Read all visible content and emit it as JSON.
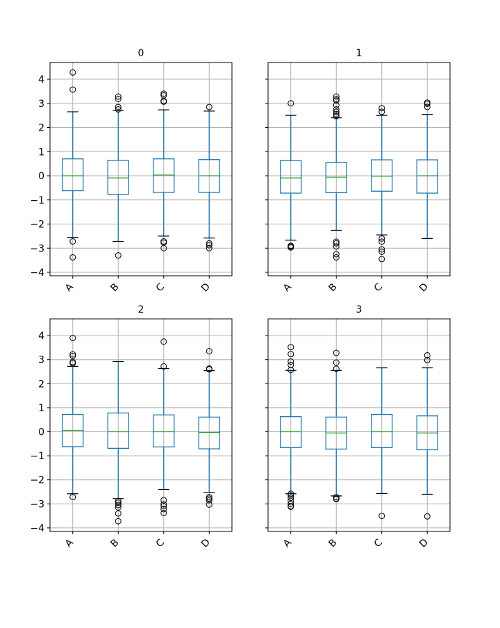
{
  "chart_data": [
    {
      "type": "box",
      "title": "0",
      "categories": [
        "A",
        "B",
        "C",
        "D"
      ],
      "ylim": [
        -4.15,
        4.7
      ],
      "yticks": [
        -4,
        -3,
        -2,
        -1,
        0,
        1,
        2,
        3,
        4
      ],
      "show_ytick_labels": true,
      "grid": true,
      "boxes": [
        {
          "label": "A",
          "whislo": -2.55,
          "q1": -0.62,
          "med": 0.0,
          "q3": 0.7,
          "whishi": 2.65,
          "fliers": [
            4.28,
            3.57,
            -2.72,
            -3.38
          ]
        },
        {
          "label": "B",
          "whislo": -2.72,
          "q1": -0.77,
          "med": -0.09,
          "q3": 0.64,
          "whishi": 2.7,
          "fliers": [
            3.28,
            3.18,
            2.85,
            2.75,
            -3.3
          ]
        },
        {
          "label": "C",
          "whislo": -2.5,
          "q1": -0.69,
          "med": 0.03,
          "q3": 0.7,
          "whishi": 2.73,
          "fliers": [
            3.4,
            3.33,
            3.1,
            3.07,
            -2.72,
            -2.77,
            -3.0
          ]
        },
        {
          "label": "D",
          "whislo": -2.58,
          "q1": -0.69,
          "med": 0.0,
          "q3": 0.67,
          "whishi": 2.68,
          "fliers": [
            2.85,
            -2.8,
            -2.88,
            -3.0
          ]
        }
      ]
    },
    {
      "type": "box",
      "title": "1",
      "categories": [
        "A",
        "B",
        "C",
        "D"
      ],
      "ylim": [
        -4.15,
        4.7
      ],
      "yticks": [
        -4,
        -3,
        -2,
        -1,
        0,
        1,
        2,
        3,
        4
      ],
      "show_ytick_labels": false,
      "grid": true,
      "boxes": [
        {
          "label": "A",
          "whislo": -2.67,
          "q1": -0.72,
          "med": -0.09,
          "q3": 0.63,
          "whishi": 2.5,
          "fliers": [
            3.0,
            -2.9,
            -2.93,
            -2.97
          ]
        },
        {
          "label": "B",
          "whislo": -2.26,
          "q1": -0.7,
          "med": -0.06,
          "q3": 0.55,
          "whishi": 2.4,
          "fliers": [
            3.28,
            3.18,
            3.12,
            2.92,
            2.75,
            2.65,
            2.55,
            2.47,
            -2.73,
            -2.8,
            -2.93,
            -3.25,
            -3.38
          ]
        },
        {
          "label": "C",
          "whislo": -2.45,
          "q1": -0.64,
          "med": -0.02,
          "q3": 0.66,
          "whishi": 2.5,
          "fliers": [
            2.8,
            2.65,
            -2.6,
            -2.73,
            -3.05,
            -3.15,
            -3.45
          ]
        },
        {
          "label": "D",
          "whislo": -2.6,
          "q1": -0.72,
          "med": 0.0,
          "q3": 0.66,
          "whishi": 2.54,
          "fliers": [
            3.03,
            2.98,
            2.85
          ]
        }
      ]
    },
    {
      "type": "box",
      "title": "2",
      "categories": [
        "A",
        "B",
        "C",
        "D"
      ],
      "ylim": [
        -4.15,
        4.7
      ],
      "yticks": [
        -4,
        -3,
        -2,
        -1,
        0,
        1,
        2,
        3,
        4
      ],
      "show_ytick_labels": true,
      "grid": true,
      "boxes": [
        {
          "label": "A",
          "whislo": -2.58,
          "q1": -0.62,
          "med": 0.06,
          "q3": 0.72,
          "whishi": 2.72,
          "fliers": [
            3.9,
            3.22,
            3.15,
            2.9,
            2.85,
            -2.72
          ]
        },
        {
          "label": "B",
          "whislo": -2.78,
          "q1": -0.69,
          "med": 0.0,
          "q3": 0.78,
          "whishi": 2.92,
          "fliers": [
            -2.88,
            -2.95,
            -3.05,
            -3.15,
            -3.4,
            -3.72
          ]
        },
        {
          "label": "C",
          "whislo": -2.4,
          "q1": -0.63,
          "med": 0.0,
          "q3": 0.7,
          "whishi": 2.63,
          "fliers": [
            3.75,
            2.72,
            -2.85,
            -3.02,
            -3.1,
            -3.22,
            -3.38
          ]
        },
        {
          "label": "D",
          "whislo": -2.52,
          "q1": -0.71,
          "med": -0.03,
          "q3": 0.61,
          "whishi": 2.54,
          "fliers": [
            3.35,
            2.63,
            2.6,
            -2.72,
            -2.78,
            -2.85,
            -3.03
          ]
        }
      ]
    },
    {
      "type": "box",
      "title": "3",
      "categories": [
        "A",
        "B",
        "C",
        "D"
      ],
      "ylim": [
        -4.15,
        4.7
      ],
      "yticks": [
        -4,
        -3,
        -2,
        -1,
        0,
        1,
        2,
        3,
        4
      ],
      "show_ytick_labels": false,
      "grid": true,
      "boxes": [
        {
          "label": "A",
          "whislo": -2.58,
          "q1": -0.66,
          "med": 0.0,
          "q3": 0.63,
          "whishi": 2.55,
          "fliers": [
            3.52,
            3.23,
            2.92,
            2.78,
            2.57,
            -2.58,
            -2.65,
            -2.75,
            -2.88,
            -3.0,
            -3.1,
            -3.12
          ]
        },
        {
          "label": "B",
          "whislo": -2.67,
          "q1": -0.72,
          "med": -0.05,
          "q3": 0.61,
          "whishi": 2.55,
          "fliers": [
            3.28,
            2.88,
            2.62,
            -2.72,
            -2.78,
            -2.8
          ]
        },
        {
          "label": "C",
          "whislo": -2.57,
          "q1": -0.66,
          "med": 0.0,
          "q3": 0.72,
          "whishi": 2.66,
          "fliers": [
            -3.5
          ]
        },
        {
          "label": "D",
          "whislo": -2.6,
          "q1": -0.75,
          "med": -0.05,
          "q3": 0.66,
          "whishi": 2.66,
          "fliers": [
            3.18,
            2.98,
            -3.52
          ]
        }
      ]
    }
  ],
  "style": {
    "box_color": "#1f77b4",
    "median_color": "#2ca02c",
    "whisker_cap_color": "#000000",
    "flier_color": "#000000",
    "grid_color": "#b0b0b0",
    "axes_edge_color": "#000000"
  }
}
